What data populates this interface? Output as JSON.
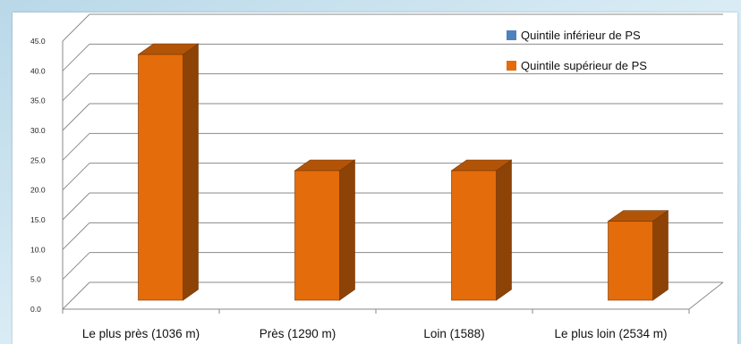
{
  "chart_data": {
    "type": "bar",
    "categories": [
      "Le plus près (1036 m)",
      "Près (1290 m)",
      "Loin (1588)",
      "Le plus loin (2534 m)"
    ],
    "series": [
      {
        "name": "Quintile inférieur de PS",
        "values": [
          0,
          0,
          0,
          0
        ],
        "color": "#4f81bd"
      },
      {
        "name": "Quintile supérieur de PS",
        "values": [
          42.0,
          22.5,
          22.5,
          14.0
        ],
        "color": "#e46c0a"
      }
    ],
    "yticks": [
      "0.0",
      "5.0",
      "10.0",
      "15.0",
      "20.0",
      "25.0",
      "30.0",
      "35.0",
      "40.0",
      "45.0"
    ],
    "ylim": [
      0,
      45
    ],
    "grid": true,
    "legend_position": "top-right",
    "style": "3d"
  }
}
